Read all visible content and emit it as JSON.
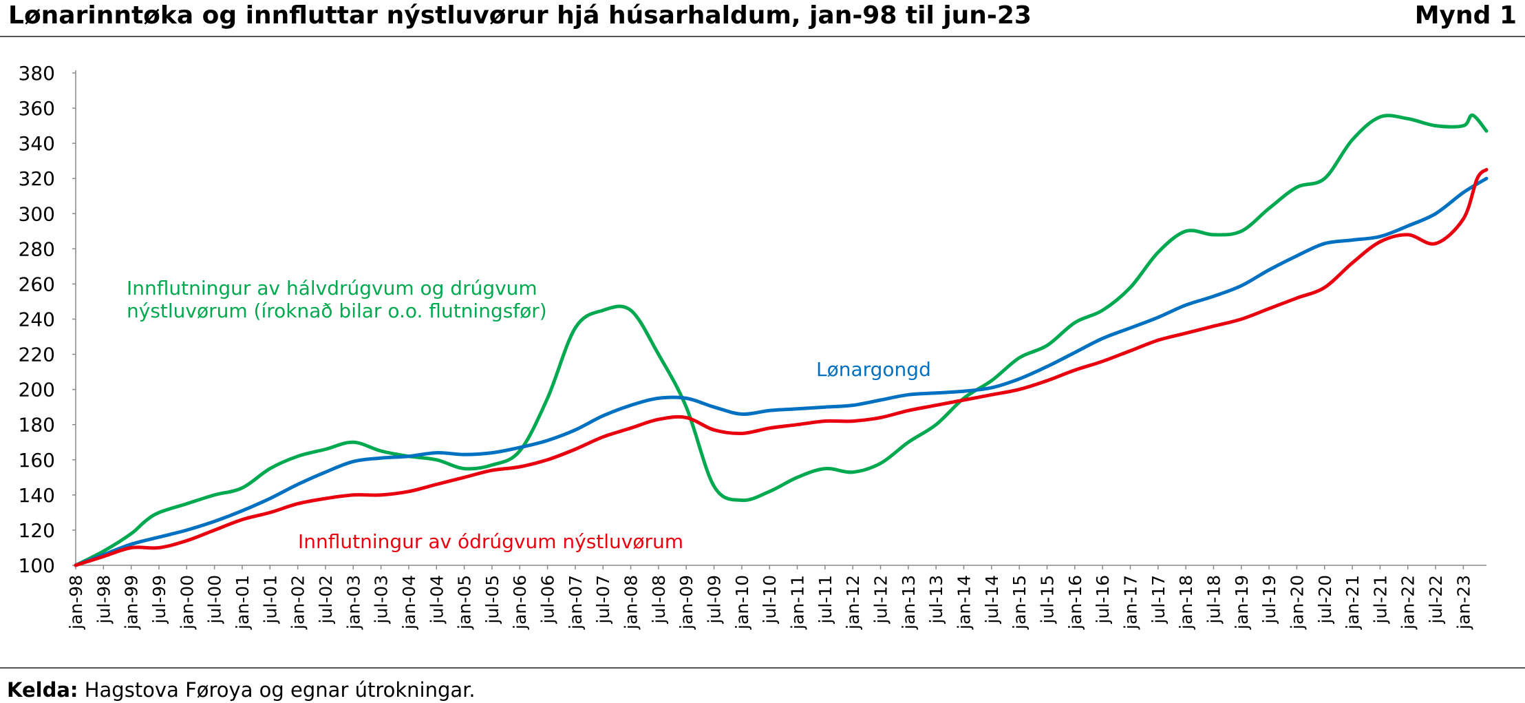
{
  "title": "Lønarinntøka og innfluttar nýstluvørur hjá húsarhaldum, jan-98 til jun-23",
  "figure_label": "Mynd 1",
  "source_label": "Kelda:",
  "source_text": " Hagstova Føroya og egnar útrokningar.",
  "chart_data": {
    "type": "line",
    "ylim": [
      100,
      380
    ],
    "yticks": [
      100,
      120,
      140,
      160,
      180,
      200,
      220,
      240,
      260,
      280,
      300,
      320,
      340,
      360,
      380
    ],
    "x_start": "1998-01",
    "x_end": "2023-06",
    "xtick_labels": [
      "jan-98",
      "jul-98",
      "jan-99",
      "jul-99",
      "jan-00",
      "jul-00",
      "jan-01",
      "jul-01",
      "jan-02",
      "jul-02",
      "jan-03",
      "jul-03",
      "jan-04",
      "jul-04",
      "jan-05",
      "jul-05",
      "jan-06",
      "jul-06",
      "jan-07",
      "jul-07",
      "jan-08",
      "jul-08",
      "jan-09",
      "jul-09",
      "jan-10",
      "jul-10",
      "jan-11",
      "jul-11",
      "jan-12",
      "jul-12",
      "jan-13",
      "jul-13",
      "jan-14",
      "jul-14",
      "jan-15",
      "jul-15",
      "jan-16",
      "jul-16",
      "jan-17",
      "jul-17",
      "jan-18",
      "jul-18",
      "jan-19",
      "jul-19",
      "jan-20",
      "jul-20",
      "jan-21",
      "jul-21",
      "jan-22",
      "jul-22",
      "jan-23"
    ],
    "grid": false,
    "series": [
      {
        "name": "Innflutningur av hálvdrúgvum og drúgvum nýstluvørum (íroknað bilar o.o. flutningsfør)",
        "label_lines": [
          "Innflutningur av hálvdrúgvum og drúgvum",
          "nýstluvørum (íroknað bilar o.o. flutningsfør)"
        ],
        "color": "#00A94F",
        "x": [
          "1998-01",
          "1998-07",
          "1999-01",
          "1999-04",
          "1999-07",
          "2000-01",
          "2000-07",
          "2001-01",
          "2001-07",
          "2002-01",
          "2002-07",
          "2003-01",
          "2003-07",
          "2004-01",
          "2004-07",
          "2005-01",
          "2005-07",
          "2006-01",
          "2006-07",
          "2007-01",
          "2007-07",
          "2008-01",
          "2008-07",
          "2009-01",
          "2009-07",
          "2010-01",
          "2010-07",
          "2011-01",
          "2011-07",
          "2012-01",
          "2012-07",
          "2013-01",
          "2013-07",
          "2014-01",
          "2014-07",
          "2015-01",
          "2015-07",
          "2016-01",
          "2016-07",
          "2017-01",
          "2017-07",
          "2018-01",
          "2018-07",
          "2019-01",
          "2019-07",
          "2020-01",
          "2020-07",
          "2021-01",
          "2021-07",
          "2022-01",
          "2022-07",
          "2023-01",
          "2023-03",
          "2023-06"
        ],
        "values": [
          100,
          108,
          118,
          125,
          130,
          135,
          140,
          144,
          155,
          162,
          166,
          170,
          165,
          162,
          160,
          155,
          157,
          165,
          195,
          235,
          245,
          245,
          220,
          190,
          145,
          137,
          142,
          150,
          155,
          153,
          158,
          170,
          180,
          195,
          205,
          218,
          225,
          238,
          245,
          258,
          278,
          290,
          288,
          290,
          303,
          315,
          320,
          342,
          355,
          354,
          350,
          350,
          356,
          347
        ]
      },
      {
        "name": "Lønargongd",
        "label_lines": [
          "Lønargongd"
        ],
        "color": "#0070C0",
        "x": [
          "1998-01",
          "1998-07",
          "1999-01",
          "1999-07",
          "2000-01",
          "2000-07",
          "2001-01",
          "2001-07",
          "2002-01",
          "2002-07",
          "2003-01",
          "2003-07",
          "2004-01",
          "2004-07",
          "2005-01",
          "2005-07",
          "2006-01",
          "2006-07",
          "2007-01",
          "2007-07",
          "2008-01",
          "2008-07",
          "2009-01",
          "2009-07",
          "2010-01",
          "2010-07",
          "2011-01",
          "2011-07",
          "2012-01",
          "2012-07",
          "2013-01",
          "2013-07",
          "2014-01",
          "2014-07",
          "2015-01",
          "2015-07",
          "2016-01",
          "2016-07",
          "2017-01",
          "2017-07",
          "2018-01",
          "2018-07",
          "2019-01",
          "2019-07",
          "2020-01",
          "2020-07",
          "2021-01",
          "2021-07",
          "2022-01",
          "2022-07",
          "2023-01",
          "2023-06"
        ],
        "values": [
          100,
          106,
          112,
          116,
          120,
          125,
          131,
          138,
          146,
          153,
          159,
          161,
          162,
          164,
          163,
          164,
          167,
          171,
          177,
          185,
          191,
          195,
          195,
          190,
          186,
          188,
          189,
          190,
          191,
          194,
          197,
          198,
          199,
          201,
          206,
          213,
          221,
          229,
          235,
          241,
          248,
          253,
          259,
          268,
          276,
          283,
          285,
          287,
          293,
          300,
          312,
          320
        ]
      },
      {
        "name": "Innflutningur av ódrúgvum nýstluvørum",
        "label_lines": [
          "Innflutningur av ódrúgvum nýstluvørum"
        ],
        "color": "#E8000F",
        "x": [
          "1998-01",
          "1998-07",
          "1999-01",
          "1999-07",
          "2000-01",
          "2000-07",
          "2001-01",
          "2001-07",
          "2002-01",
          "2002-07",
          "2003-01",
          "2003-07",
          "2004-01",
          "2004-07",
          "2005-01",
          "2005-07",
          "2006-01",
          "2006-07",
          "2007-01",
          "2007-07",
          "2008-01",
          "2008-07",
          "2009-01",
          "2009-07",
          "2010-01",
          "2010-07",
          "2011-01",
          "2011-07",
          "2012-01",
          "2012-07",
          "2013-01",
          "2013-07",
          "2014-01",
          "2014-07",
          "2015-01",
          "2015-07",
          "2016-01",
          "2016-07",
          "2017-01",
          "2017-07",
          "2018-01",
          "2018-07",
          "2019-01",
          "2019-07",
          "2020-01",
          "2020-07",
          "2021-01",
          "2021-07",
          "2022-01",
          "2022-07",
          "2023-01",
          "2023-04",
          "2023-06"
        ],
        "values": [
          100,
          105,
          110,
          110,
          114,
          120,
          126,
          130,
          135,
          138,
          140,
          140,
          142,
          146,
          150,
          154,
          156,
          160,
          166,
          173,
          178,
          183,
          184,
          177,
          175,
          178,
          180,
          182,
          182,
          184,
          188,
          191,
          194,
          197,
          200,
          205,
          211,
          216,
          222,
          228,
          232,
          236,
          240,
          246,
          252,
          258,
          272,
          284,
          288,
          283,
          297,
          320,
          325
        ]
      }
    ]
  }
}
